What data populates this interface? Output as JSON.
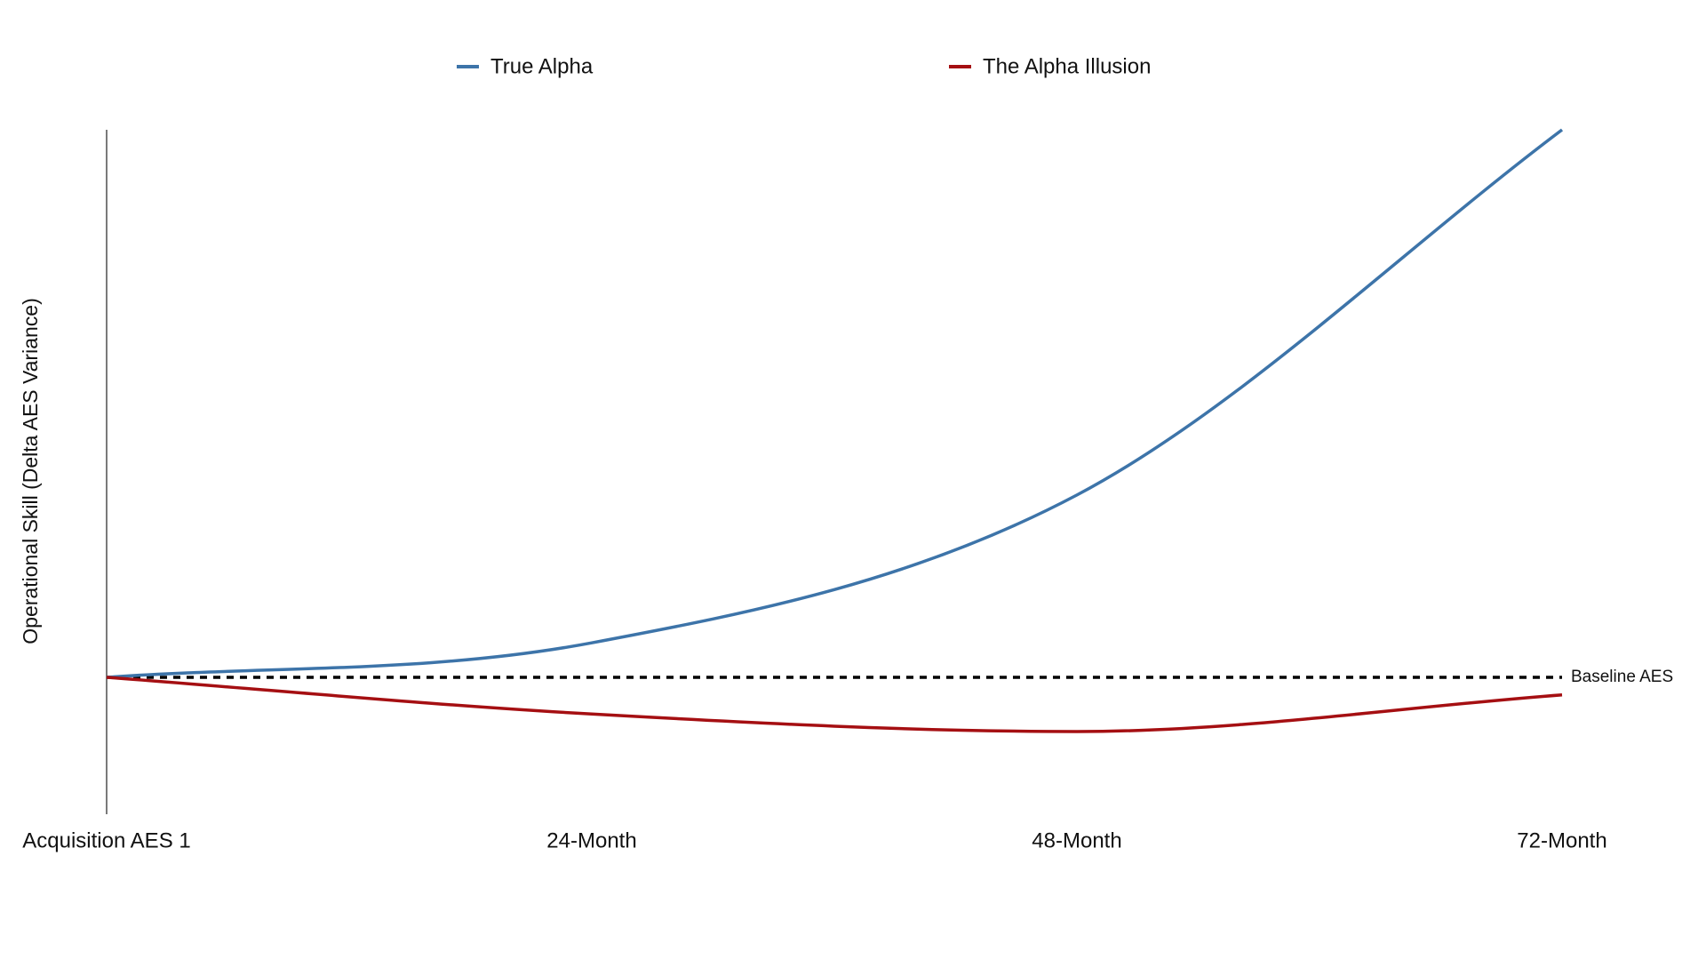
{
  "chart_data": {
    "type": "line",
    "y_label": "Operational Skill (Delta AES Variance)",
    "categories": [
      "Acquisition AES 1",
      "24-Month",
      "48-Month",
      "72-Month"
    ],
    "series": [
      {
        "name": "True Alpha",
        "color": "#3d74a9",
        "values": [
          0,
          6.3,
          33.3,
          100
        ]
      },
      {
        "name": "The Alpha Illusion",
        "color": "#a50f12",
        "values": [
          0,
          -6.7,
          -9.9,
          -3.2
        ]
      }
    ],
    "ylim": [
      -25,
      100
    ],
    "baseline": {
      "value": 0,
      "label": "Baseline AES"
    },
    "grid": false
  }
}
